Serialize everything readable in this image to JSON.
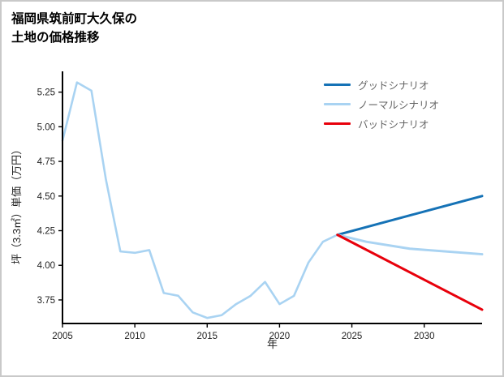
{
  "title": {
    "line1": "福岡県筑前町大久保の",
    "line2": "土地の価格推移"
  },
  "chart_data": {
    "type": "line",
    "title": "福岡県筑前町大久保の土地の価格推移",
    "xlabel": "年",
    "ylabel": "坪（3.3㎡）単価（万円）",
    "xlim": [
      2005,
      2034
    ],
    "ylim": [
      3.58,
      5.4
    ],
    "xticks": [
      2005,
      2010,
      2015,
      2020,
      2025,
      2030
    ],
    "yticks": [
      3.75,
      4.0,
      4.25,
      4.5,
      4.75,
      5.0,
      5.25
    ],
    "grid": false,
    "legend_position": "top-right",
    "axis_color": "#000000",
    "series": [
      {
        "name": "history",
        "label": "",
        "color": "#a9d3f2",
        "width": 2.6,
        "x": [
          2005,
          2006,
          2007,
          2008,
          2009,
          2010,
          2011,
          2012,
          2013,
          2014,
          2015,
          2016,
          2017,
          2018,
          2019,
          2020,
          2021,
          2022,
          2023,
          2024
        ],
        "y": [
          4.9,
          5.32,
          5.26,
          4.62,
          4.1,
          4.09,
          4.11,
          3.8,
          3.78,
          3.66,
          3.62,
          3.64,
          3.72,
          3.78,
          3.88,
          3.72,
          3.78,
          4.02,
          4.17,
          4.22
        ]
      },
      {
        "name": "good-scenario",
        "label": "グッドシナリオ",
        "color": "#1572b6",
        "width": 3,
        "x": [
          2024,
          2029,
          2034
        ],
        "y": [
          4.22,
          4.36,
          4.5
        ]
      },
      {
        "name": "normal-scenario",
        "label": "ノーマルシナリオ",
        "color": "#a9d3f2",
        "width": 3,
        "x": [
          2024,
          2026,
          2029,
          2034
        ],
        "y": [
          4.22,
          4.17,
          4.12,
          4.08
        ]
      },
      {
        "name": "bad-scenario",
        "label": "バッドシナリオ",
        "color": "#e8000b",
        "width": 3,
        "x": [
          2024,
          2034
        ],
        "y": [
          4.22,
          3.68
        ]
      }
    ],
    "legend_entries": [
      {
        "label": "グッドシナリオ",
        "color": "#1572b6"
      },
      {
        "label": "ノーマルシナリオ",
        "color": "#a9d3f2"
      },
      {
        "label": "バッドシナリオ",
        "color": "#e8000b"
      }
    ]
  }
}
